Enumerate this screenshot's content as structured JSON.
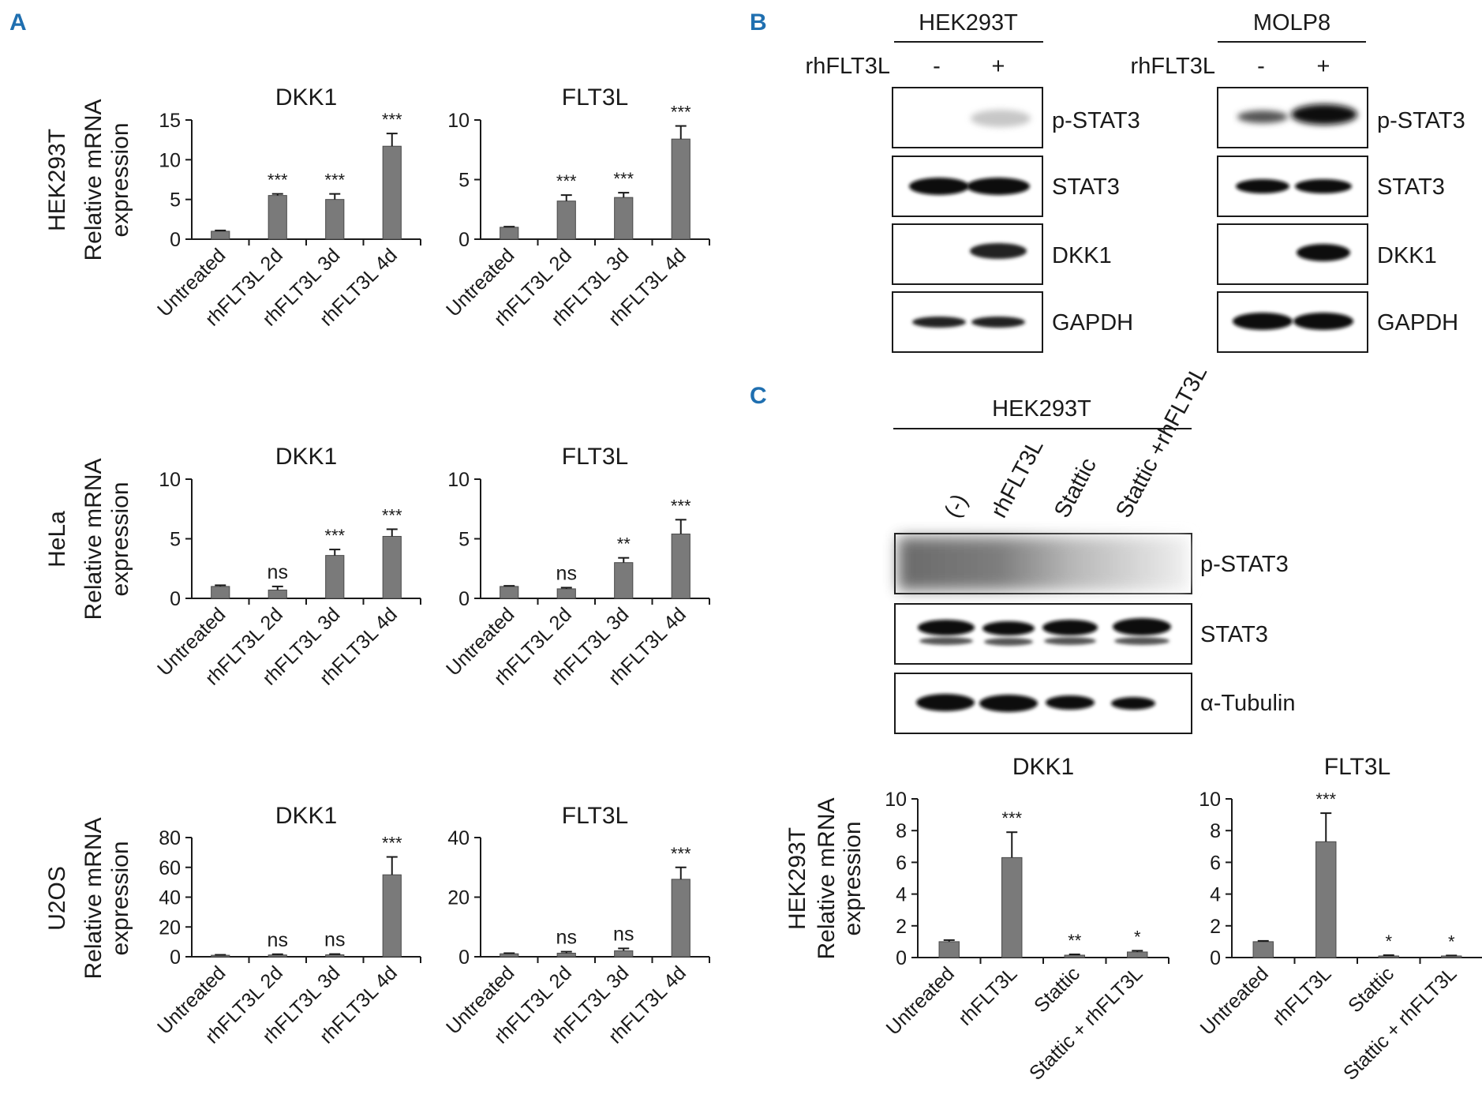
{
  "panels": [
    {
      "id": "A",
      "label": "A"
    },
    {
      "id": "B",
      "label": "B"
    },
    {
      "id": "C",
      "label": "C"
    }
  ],
  "chart_data": [
    {
      "id": "a-hek-dkk1",
      "type": "bar",
      "title": "DKK1",
      "row_label": "HEK293T",
      "ylabel_lines": [
        "Relative mRNA",
        "expression"
      ],
      "categories": [
        "Untreated",
        "rhFLT3L 2d",
        "rhFLT3L 3d",
        "rhFLT3L 4d"
      ],
      "values": [
        1.0,
        5.5,
        5.0,
        11.7
      ],
      "errors": [
        0.1,
        0.2,
        0.7,
        1.6
      ],
      "significance": [
        "",
        "***",
        "***",
        "***"
      ],
      "ylim": [
        0,
        15
      ],
      "yticks": [
        "0",
        "5",
        "10",
        "15"
      ]
    },
    {
      "id": "a-hek-flt3l",
      "type": "bar",
      "title": "FLT3L",
      "categories": [
        "Untreated",
        "rhFLT3L 2d",
        "rhFLT3L 3d",
        "rhFLT3L 4d"
      ],
      "values": [
        1.0,
        3.2,
        3.5,
        8.4
      ],
      "errors": [
        0.05,
        0.5,
        0.4,
        1.1
      ],
      "significance": [
        "",
        "***",
        "***",
        "***"
      ],
      "ylim": [
        0,
        10
      ],
      "yticks": [
        "0",
        "5",
        "10"
      ]
    },
    {
      "id": "a-hela-dkk1",
      "type": "bar",
      "title": "DKK1",
      "row_label": "HeLa",
      "ylabel_lines": [
        "Relative mRNA",
        "expression"
      ],
      "categories": [
        "Untreated",
        "rhFLT3L 2d",
        "rhFLT3L 3d",
        "rhFLT3L 4d"
      ],
      "values": [
        1.0,
        0.7,
        3.6,
        5.2
      ],
      "errors": [
        0.1,
        0.3,
        0.5,
        0.6
      ],
      "significance": [
        "",
        "ns",
        "***",
        "***"
      ],
      "ylim": [
        0,
        10
      ],
      "yticks": [
        "0",
        "5",
        "10"
      ]
    },
    {
      "id": "a-hela-flt3l",
      "type": "bar",
      "title": "FLT3L",
      "categories": [
        "Untreated",
        "rhFLT3L 2d",
        "rhFLT3L 3d",
        "rhFLT3L 4d"
      ],
      "values": [
        1.0,
        0.8,
        3.0,
        5.4
      ],
      "errors": [
        0.05,
        0.1,
        0.4,
        1.2
      ],
      "significance": [
        "",
        "ns",
        "**",
        "***"
      ],
      "ylim": [
        0,
        10
      ],
      "yticks": [
        "0",
        "5",
        "10"
      ]
    },
    {
      "id": "a-u2os-dkk1",
      "type": "bar",
      "title": "DKK1",
      "row_label": "U2OS",
      "ylabel_lines": [
        "Relative mRNA",
        "expression"
      ],
      "categories": [
        "Untreated",
        "rhFLT3L 2d",
        "rhFLT3L 3d",
        "rhFLT3L 4d"
      ],
      "values": [
        1.0,
        1.2,
        1.3,
        55.0
      ],
      "errors": [
        0.3,
        0.5,
        0.5,
        12.0
      ],
      "significance": [
        "",
        "ns",
        "ns",
        "***"
      ],
      "ylim": [
        0,
        80
      ],
      "yticks": [
        "0",
        "20",
        "40",
        "60",
        "80"
      ]
    },
    {
      "id": "a-u2os-flt3l",
      "type": "bar",
      "title": "FLT3L",
      "categories": [
        "Untreated",
        "rhFLT3L 2d",
        "rhFLT3L 3d",
        "rhFLT3L 4d"
      ],
      "values": [
        1.0,
        1.2,
        2.0,
        26.0
      ],
      "errors": [
        0.2,
        0.5,
        0.8,
        4.0
      ],
      "significance": [
        "",
        "ns",
        "ns",
        "***"
      ],
      "ylim": [
        0,
        40
      ],
      "yticks": [
        "0",
        "20",
        "40"
      ]
    },
    {
      "id": "c-dkk1",
      "type": "bar",
      "title": "DKK1",
      "row_label": "HEK293T",
      "ylabel_lines": [
        "Relative mRNA",
        "expression"
      ],
      "categories": [
        "Untreated",
        "rhFLT3L",
        "Stattic",
        "Stattic + rhFLT3L"
      ],
      "values": [
        1.0,
        6.3,
        0.15,
        0.35
      ],
      "errors": [
        0.1,
        1.6,
        0.05,
        0.08
      ],
      "significance": [
        "",
        "***",
        "**",
        "*"
      ],
      "ylim": [
        0,
        10
      ],
      "yticks": [
        "0",
        "2",
        "4",
        "6",
        "8",
        "10"
      ]
    },
    {
      "id": "c-flt3l",
      "type": "bar",
      "title": "FLT3L",
      "categories": [
        "Untreated",
        "rhFLT3L",
        "Stattic",
        "Stattic + rhFLT3L"
      ],
      "values": [
        1.0,
        7.3,
        0.1,
        0.1
      ],
      "errors": [
        0.05,
        1.8,
        0.05,
        0.03
      ],
      "significance": [
        "",
        "***",
        "*",
        "*"
      ],
      "ylim": [
        0,
        10
      ],
      "yticks": [
        "0",
        "2",
        "4",
        "6",
        "8",
        "10"
      ]
    }
  ],
  "blots": {
    "b_hek": {
      "header": "HEK293T",
      "treatment_label": "rhFLT3L",
      "lanes": [
        "-",
        "+"
      ],
      "rows": [
        "p-STAT3",
        "STAT3",
        "DKK1",
        "GAPDH"
      ]
    },
    "b_molp": {
      "header": "MOLP8",
      "treatment_label": "rhFLT3L",
      "lanes": [
        "-",
        "+"
      ],
      "rows": [
        "p-STAT3",
        "STAT3",
        "DKK1",
        "GAPDH"
      ]
    },
    "c_hek": {
      "header": "HEK293T",
      "lanes": [
        "(-)",
        "rhFLT3L",
        "Stattic",
        "Stattic +rhFLT3L"
      ],
      "rows": [
        "p-STAT3",
        "STAT3",
        "α-Tubulin"
      ]
    }
  }
}
